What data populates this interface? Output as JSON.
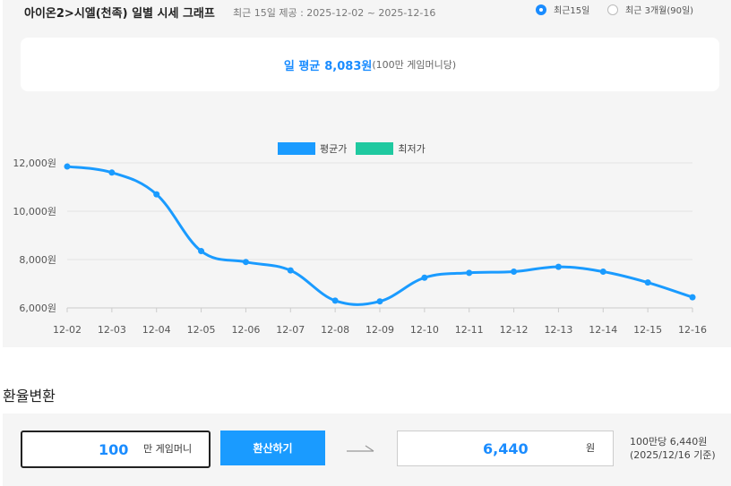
{
  "header": {
    "title": "아이온2>시엘(천족) 일별 시세 그래프",
    "subtitle": "최근 15일 제공 : 2025-12-02 ~ 2025-12-16",
    "options": [
      {
        "label": "최근15일",
        "selected": true
      },
      {
        "label": "최근 3개월(90일)",
        "selected": false
      }
    ]
  },
  "summary": {
    "label": "일 평균",
    "value": "8,083원",
    "note": "(100만 게임머니당)"
  },
  "legend": [
    {
      "label": "평균가",
      "color": "#1a9bff"
    },
    {
      "label": "최저가",
      "color": "#1fc9a0"
    }
  ],
  "chart_data": {
    "type": "line",
    "categories": [
      "12-02",
      "12-03",
      "12-04",
      "12-05",
      "12-06",
      "12-07",
      "12-08",
      "12-09",
      "12-10",
      "12-11",
      "12-12",
      "12-13",
      "12-14",
      "12-15",
      "12-16"
    ],
    "series": [
      {
        "name": "평균가",
        "color": "#1a9bff",
        "values": [
          11850,
          11600,
          10700,
          8350,
          7900,
          7550,
          6300,
          6270,
          7250,
          7450,
          7500,
          7700,
          7500,
          7050,
          6440
        ]
      }
    ],
    "yticks": [
      "6,000원",
      "8,000원",
      "10,000원",
      "12,000원"
    ],
    "ytick_values": [
      6000,
      8000,
      10000,
      12000
    ],
    "ylim": [
      6000,
      12000
    ],
    "grid": true,
    "legend_position": "top-center"
  },
  "converter": {
    "section_title": "환율변환",
    "amount": "100",
    "amount_unit": "만 게임머니",
    "button_label": "환산하기",
    "result": "6,440",
    "result_unit": "원",
    "rate_line1": "100만당 6,440원",
    "rate_line2": "(2025/12/16 기준)"
  }
}
